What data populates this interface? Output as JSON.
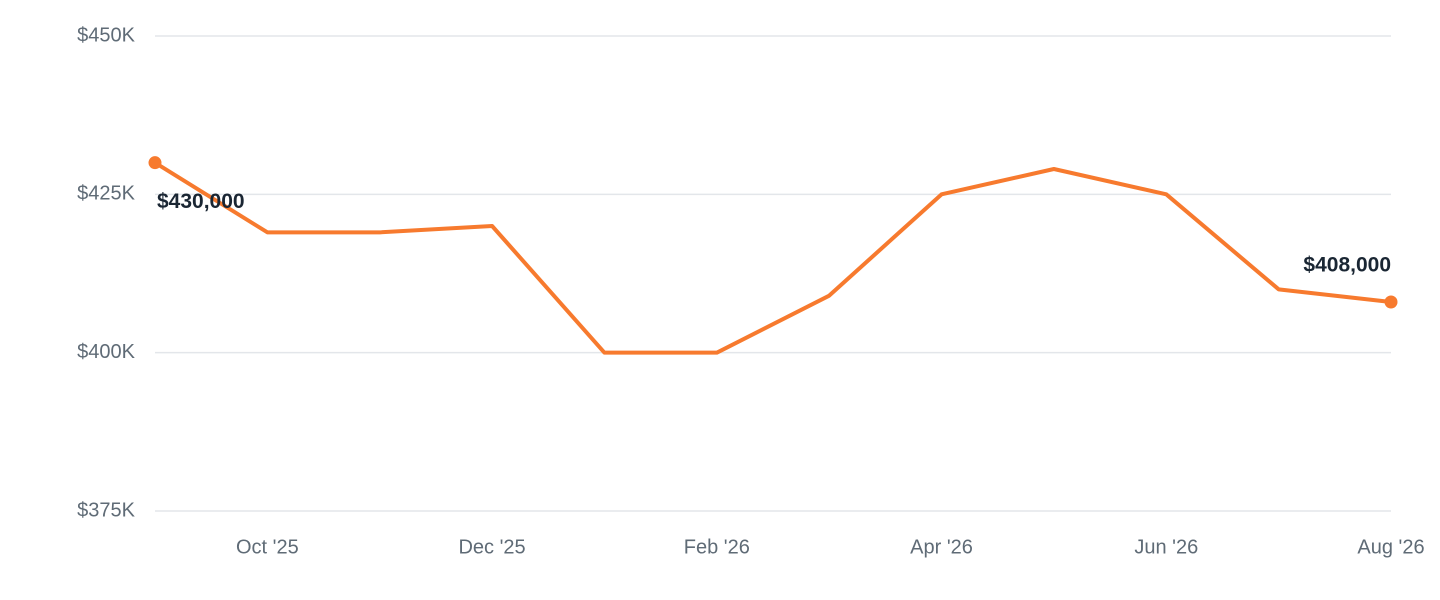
{
  "chart_data": {
    "type": "line",
    "categories": [
      null,
      "Oct '25",
      null,
      "Dec '25",
      null,
      "Feb '26",
      null,
      "Apr '26",
      null,
      "Jun '26",
      null,
      "Aug '26"
    ],
    "series": [
      {
        "color": "#f77a2e",
        "values": [
          430000,
          419000,
          419000,
          420000,
          400000,
          400000,
          409000,
          425000,
          429000,
          425000,
          410000,
          408000
        ],
        "value_labels": [
          "$430,000",
          null,
          null,
          null,
          null,
          null,
          null,
          null,
          null,
          null,
          null,
          "$408,000"
        ]
      }
    ],
    "ylim": [
      375000,
      450000
    ],
    "yticks": [
      {
        "value": 375000,
        "label": "$375K"
      },
      {
        "value": 400000,
        "label": "$400K"
      },
      {
        "value": 425000,
        "label": "$425K"
      },
      {
        "value": 450000,
        "label": "$450K"
      }
    ],
    "grid": true
  }
}
